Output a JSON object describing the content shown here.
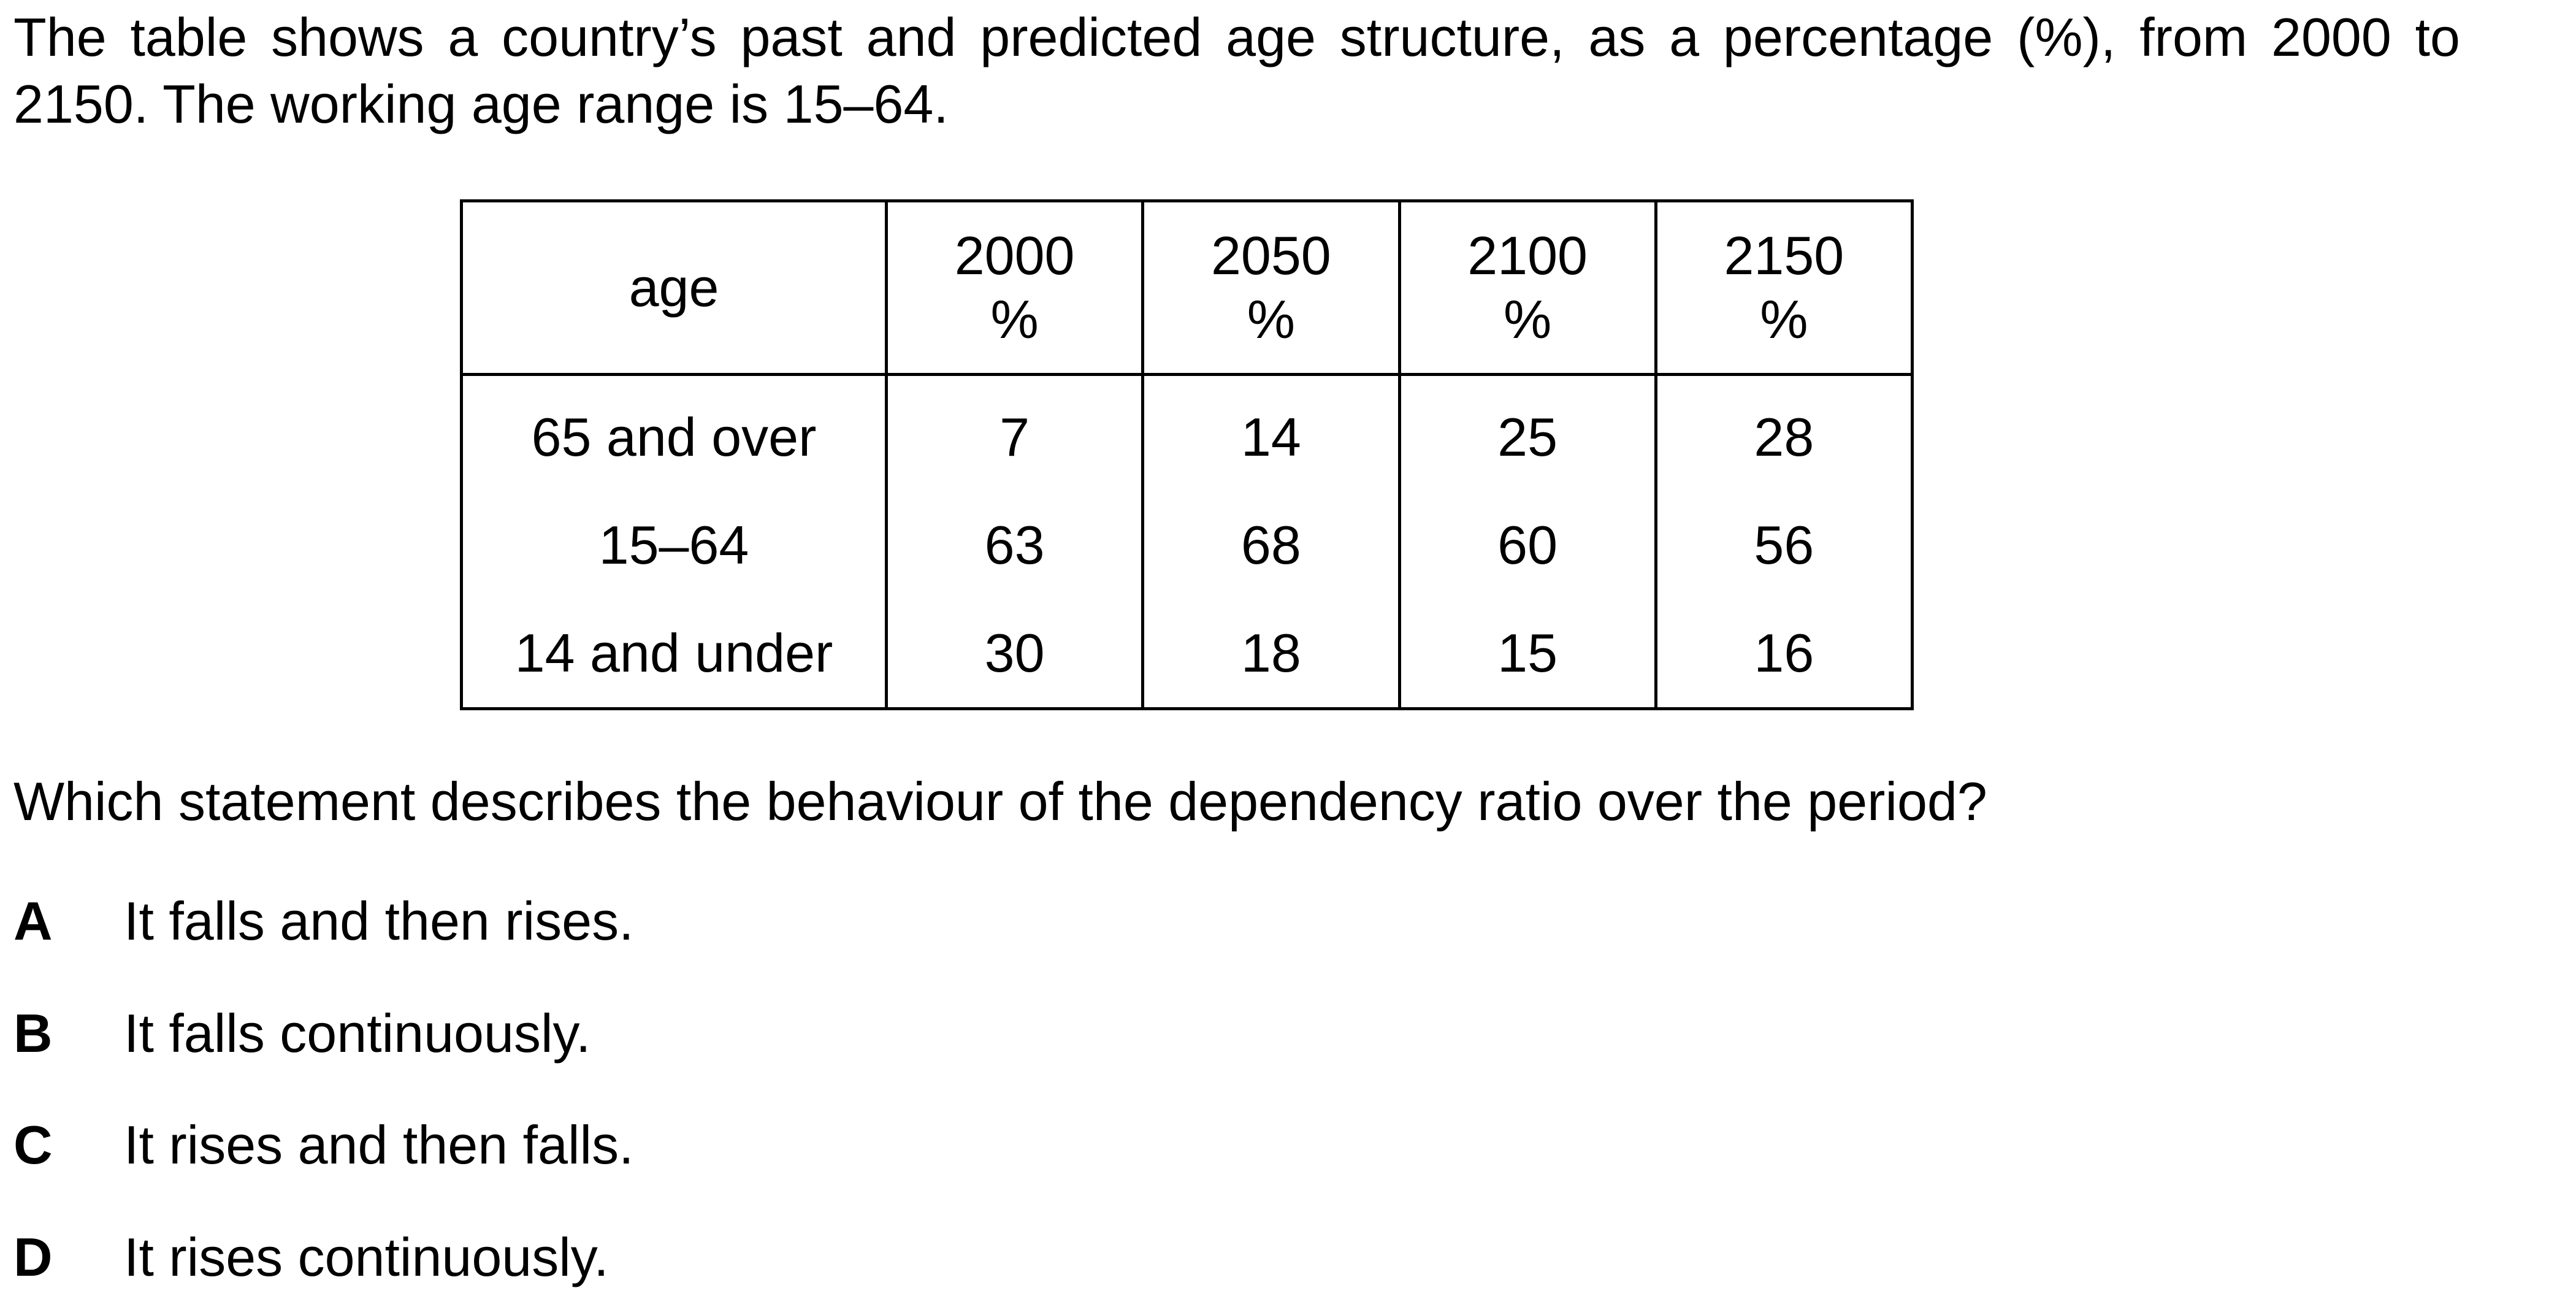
{
  "intro": "The table shows a country’s past and predicted age structure, as a percentage (%), from 2000 to 2150. The working age range is 15–64.",
  "table": {
    "header": {
      "age_label": "age",
      "years": [
        {
          "year": "2000",
          "unit": "%"
        },
        {
          "year": "2050",
          "unit": "%"
        },
        {
          "year": "2100",
          "unit": "%"
        },
        {
          "year": "2150",
          "unit": "%"
        }
      ]
    },
    "rows": [
      {
        "label": "65 and over",
        "values": [
          "7",
          "14",
          "25",
          "28"
        ]
      },
      {
        "label": "15–64",
        "values": [
          "63",
          "68",
          "60",
          "56"
        ]
      },
      {
        "label": "14 and under",
        "values": [
          "30",
          "18",
          "15",
          "16"
        ]
      }
    ]
  },
  "question": "Which statement describes the behaviour of the dependency ratio over the period?",
  "options": [
    {
      "letter": "A",
      "text": "It falls and then rises."
    },
    {
      "letter": "B",
      "text": "It falls continuously."
    },
    {
      "letter": "C",
      "text": "It rises and then falls."
    },
    {
      "letter": "D",
      "text": "It rises continuously."
    }
  ]
}
